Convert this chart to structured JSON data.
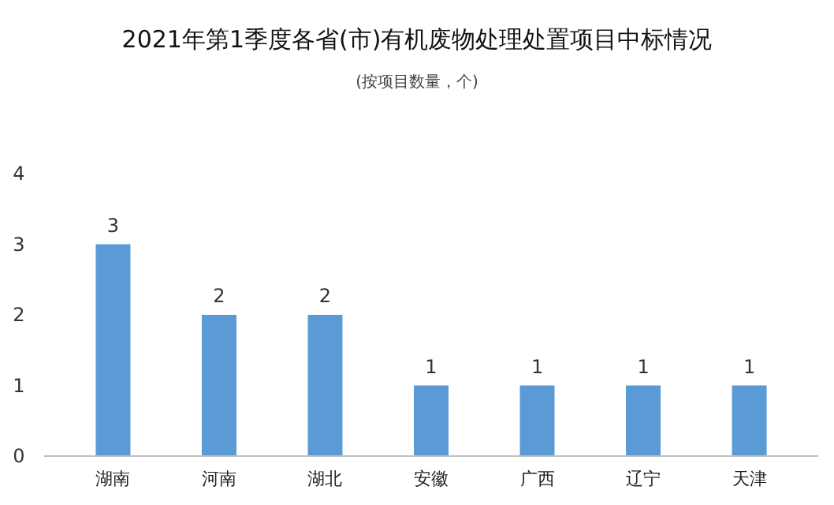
{
  "chart_data": {
    "type": "bar",
    "title": "2021年第1季度各省(市)有机废物处理处置项目中标情况",
    "subtitle": "(按项目数量，个)",
    "categories": [
      "湖南",
      "河南",
      "湖北",
      "安徽",
      "广西",
      "辽宁",
      "天津"
    ],
    "values": [
      3,
      2,
      2,
      1,
      1,
      1,
      1
    ],
    "color": "#5b9bd5",
    "ylim": [
      0,
      4
    ],
    "yticks": [
      0,
      1,
      2,
      3,
      4
    ],
    "data_labels": true
  }
}
